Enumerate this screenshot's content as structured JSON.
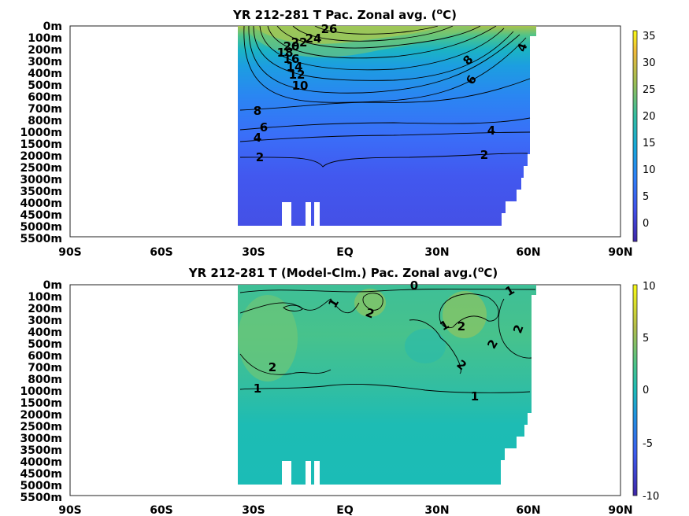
{
  "chart_data": [
    {
      "type": "heatmap",
      "title": "YR 212-281 T Pac. Zonal avg. (",
      "title_sup": "o",
      "title_tail": "C)",
      "x_ticks": [
        "90S",
        "60S",
        "30S",
        "EQ",
        "30N",
        "60N",
        "90N"
      ],
      "y_ticks": [
        "0m",
        "100m",
        "200m",
        "300m",
        "400m",
        "500m",
        "600m",
        "700m",
        "800m",
        "1000m",
        "1500m",
        "2000m",
        "2500m",
        "3000m",
        "3500m",
        "4000m",
        "4500m",
        "5000m",
        "5500m"
      ],
      "xlim": [
        -90,
        90
      ],
      "colorbar": {
        "ticks": [
          "35",
          "30",
          "25",
          "20",
          "15",
          "10",
          "5",
          "0"
        ],
        "range": [
          -3,
          36
        ]
      },
      "contour_labels": [
        "26",
        "24",
        "22",
        "20",
        "18",
        "16",
        "14",
        "12",
        "10",
        "8",
        "6",
        "4",
        "2",
        "8",
        "6",
        "4",
        "4",
        "2"
      ]
    },
    {
      "type": "heatmap",
      "title": "YR 212-281 T (Model-Clm.) Pac. Zonal avg.(",
      "title_sup": "o",
      "title_tail": "C)",
      "x_ticks": [
        "90S",
        "60S",
        "30S",
        "EQ",
        "30N",
        "60N",
        "90N"
      ],
      "y_ticks": [
        "0m",
        "100m",
        "200m",
        "300m",
        "400m",
        "500m",
        "600m",
        "700m",
        "800m",
        "1000m",
        "1500m",
        "2000m",
        "2500m",
        "3000m",
        "3500m",
        "4000m",
        "4500m",
        "5000m",
        "5500m"
      ],
      "xlim": [
        -90,
        90
      ],
      "colorbar": {
        "ticks": [
          "10",
          "5",
          "0",
          "-5",
          "-10"
        ],
        "range": [
          -10,
          10
        ]
      },
      "contour_labels": [
        "0",
        "1",
        "1",
        "2",
        "1",
        "2",
        "2",
        "2",
        "2",
        "2",
        "1",
        "1"
      ]
    }
  ]
}
